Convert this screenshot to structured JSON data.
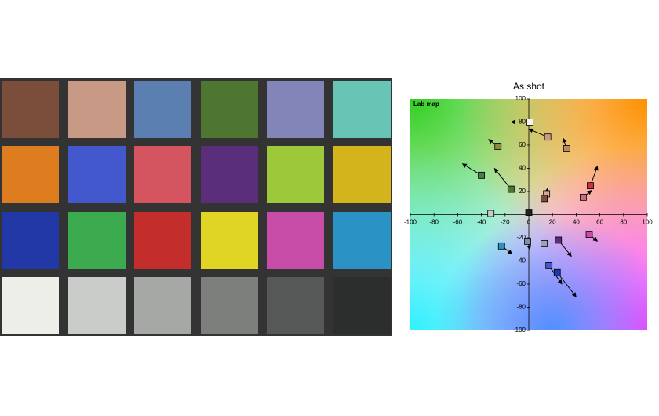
{
  "chart_data": {
    "type": "scatter",
    "title": "As shot",
    "annotation": "Lab map",
    "xlim": [
      -100,
      100
    ],
    "ylim": [
      -100,
      100
    ],
    "xticks": [
      -100,
      -80,
      -60,
      -40,
      -20,
      0,
      20,
      40,
      60,
      80,
      100
    ],
    "yticks": [
      -100,
      -80,
      -60,
      -40,
      -20,
      20,
      40,
      60,
      80,
      100
    ],
    "x": [
      1,
      16,
      32,
      -26,
      -40,
      -15,
      15,
      13,
      46,
      52,
      -32,
      0,
      -1,
      -23,
      13,
      25,
      51,
      17,
      24
    ],
    "values": [
      80,
      67,
      57,
      59,
      34,
      22,
      18,
      14,
      15,
      25,
      1,
      2,
      -23,
      -27,
      -25,
      -22,
      -17,
      -44,
      -50
    ],
    "arrow_x": [
      -15,
      0,
      29,
      -34,
      -56,
      -29,
      16,
      16,
      53,
      58,
      null,
      null,
      1,
      -14,
      null,
      36,
      58,
      28,
      40
    ],
    "arrow_y": [
      80,
      74,
      66,
      65,
      44,
      40,
      23,
      20,
      21,
      42,
      null,
      null,
      -30,
      -34,
      null,
      -36,
      -23,
      -60,
      -71
    ],
    "colors": [
      "#f4f4f0",
      "#c89a86",
      "#c08a60",
      "#8a8a40",
      "#4e7a50",
      "#4e7630",
      "#d8a8a0",
      "#7a4e3a",
      "#d06a80",
      "#d03040",
      "#c9ccc8",
      "#202020",
      "#8090a0",
      "#2a92c4",
      "#a0a0b8",
      "#5a2e7a",
      "#c64ca8",
      "#4258cc",
      "#2138a6"
    ]
  }
}
